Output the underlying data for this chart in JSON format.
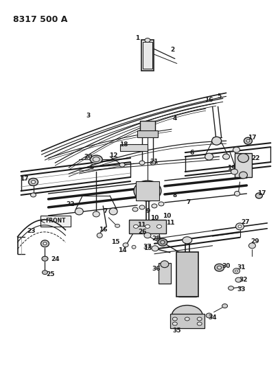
{
  "title": "8317 500 A",
  "bg": "#ffffff",
  "lc": "#1a1a1a",
  "tc": "#1a1a1a",
  "fw": 4.08,
  "fh": 5.33,
  "dpi": 100
}
